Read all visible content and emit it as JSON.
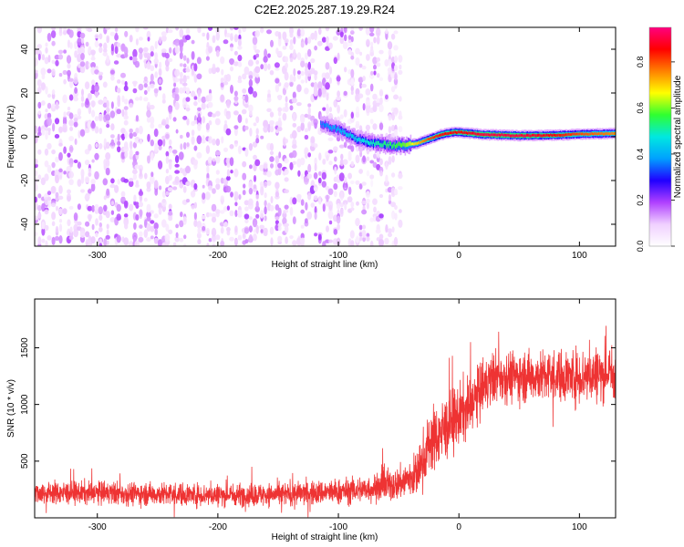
{
  "title": "C2E2.2025.287.19.29.R24",
  "chart_data": [
    {
      "type": "heatmap",
      "xlabel": "Height of straight line (km)",
      "ylabel": "Frequency (Hz)",
      "xlim": [
        -352,
        130
      ],
      "ylim": [
        -50,
        50
      ],
      "xticks": [
        -300,
        -200,
        -100,
        0,
        100
      ],
      "yticks": [
        -40,
        -20,
        0,
        20,
        40
      ],
      "colorbar": {
        "label": "Normalized spectral amplitude",
        "range": [
          0,
          0.95
        ],
        "ticks": [
          "0.0",
          "0.2",
          "0.4",
          "0.6",
          "0.8"
        ],
        "colors": [
          "#ffffff",
          "#f0d0ff",
          "#b040ff",
          "#2000ff",
          "#00a0ff",
          "#00e8e0",
          "#30ff30",
          "#ffff00",
          "#ff8000",
          "#ff0000",
          "#ff0080"
        ]
      },
      "noise_region": {
        "x": [
          -352,
          -45
        ],
        "y": [
          -50,
          50
        ],
        "amplitude": 0.15
      },
      "signal_track": {
        "x": [
          -115,
          -100,
          -85,
          -70,
          -55,
          -45,
          -35,
          -25,
          -15,
          -5,
          0,
          20,
          50,
          80,
          100,
          130
        ],
        "frequency": [
          6,
          3,
          -1,
          -3,
          -4,
          -4,
          -3,
          -1,
          1,
          2,
          2,
          1,
          0.5,
          0.7,
          1.2,
          1.5
        ],
        "amplitude": [
          0.35,
          0.4,
          0.45,
          0.5,
          0.55,
          0.6,
          0.7,
          0.8,
          0.85,
          0.85,
          0.85,
          0.9,
          0.9,
          0.85,
          0.8,
          0.75
        ]
      }
    },
    {
      "type": "line",
      "xlabel": "Height of straight line (km)",
      "ylabel": "SNR (10 * v/v)",
      "xlim": [
        -352,
        130
      ],
      "ylim": [
        0,
        1930
      ],
      "xticks": [
        -300,
        -200,
        -100,
        0,
        100
      ],
      "yticks": [
        500,
        1000,
        1500
      ],
      "color": "#ee3333",
      "series": [
        {
          "x": [
            -352,
            -300,
            -250,
            -200,
            -150,
            -100,
            -70,
            -50,
            -35,
            -30,
            -25,
            -15,
            0,
            10,
            20,
            30,
            50,
            80,
            100,
            130
          ],
          "mean": [
            220,
            220,
            210,
            200,
            205,
            230,
            260,
            300,
            380,
            500,
            650,
            750,
            900,
            1000,
            1150,
            1250,
            1250,
            1250,
            1250,
            1280
          ],
          "noise": [
            90,
            90,
            90,
            90,
            90,
            100,
            110,
            130,
            180,
            220,
            240,
            250,
            250,
            230,
            220,
            200,
            200,
            200,
            220,
            220
          ]
        }
      ]
    }
  ]
}
